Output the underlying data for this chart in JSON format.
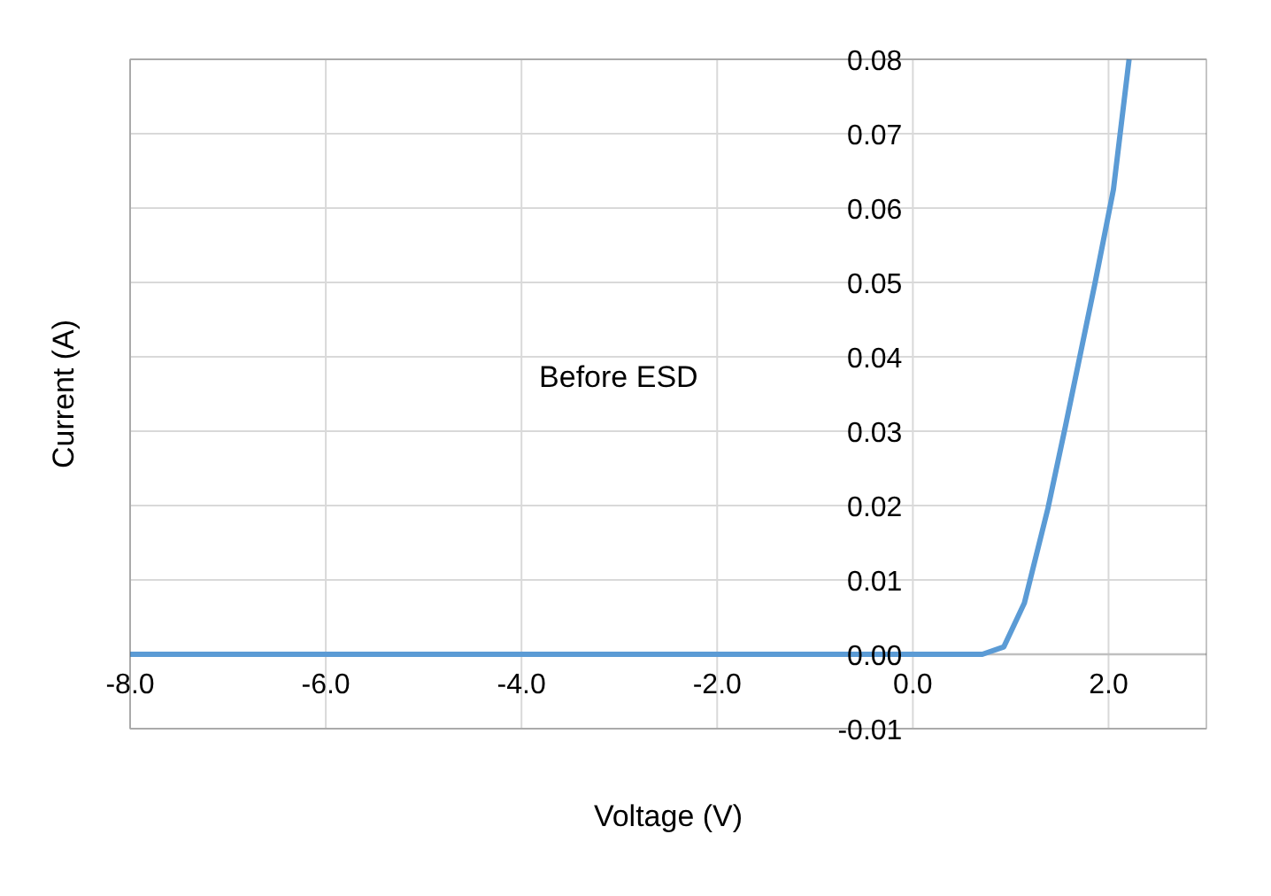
{
  "chart_data": {
    "type": "line",
    "xlabel": "Voltage (V)",
    "ylabel": "Current (A)",
    "annotations": [
      "Before ESD"
    ],
    "series": [
      {
        "color": "#5b9bd5",
        "x": [
          -8.0,
          -4.0,
          0.0,
          0.71,
          0.93,
          1.14,
          1.38,
          1.56,
          1.86,
          2.05,
          2.21
        ],
        "values": [
          0.0,
          0.0,
          0.0,
          0.0,
          0.001,
          0.0069,
          0.0196,
          0.0307,
          0.0498,
          0.0625,
          0.08
        ]
      }
    ],
    "xlim": [
      -8,
      3
    ],
    "ylim": [
      -0.01,
      0.08
    ],
    "xticks": [
      {
        "value": -8,
        "label": "-8.0"
      },
      {
        "value": -6,
        "label": "-6.0"
      },
      {
        "value": -4,
        "label": "-4.0"
      },
      {
        "value": -2,
        "label": "-2.0"
      },
      {
        "value": 0,
        "label": "0.0"
      },
      {
        "value": 2,
        "label": "2.0"
      }
    ],
    "yticks": [
      {
        "value": -0.01,
        "label": "-0.01"
      },
      {
        "value": 0,
        "label": "0.00"
      },
      {
        "value": 0.01,
        "label": "0.01"
      },
      {
        "value": 0.02,
        "label": "0.02"
      },
      {
        "value": 0.03,
        "label": "0.03"
      },
      {
        "value": 0.04,
        "label": "0.04"
      },
      {
        "value": 0.05,
        "label": "0.05"
      },
      {
        "value": 0.06,
        "label": "0.06"
      },
      {
        "value": 0.07,
        "label": "0.07"
      },
      {
        "value": 0.08,
        "label": "0.08"
      }
    ],
    "grid": true
  }
}
